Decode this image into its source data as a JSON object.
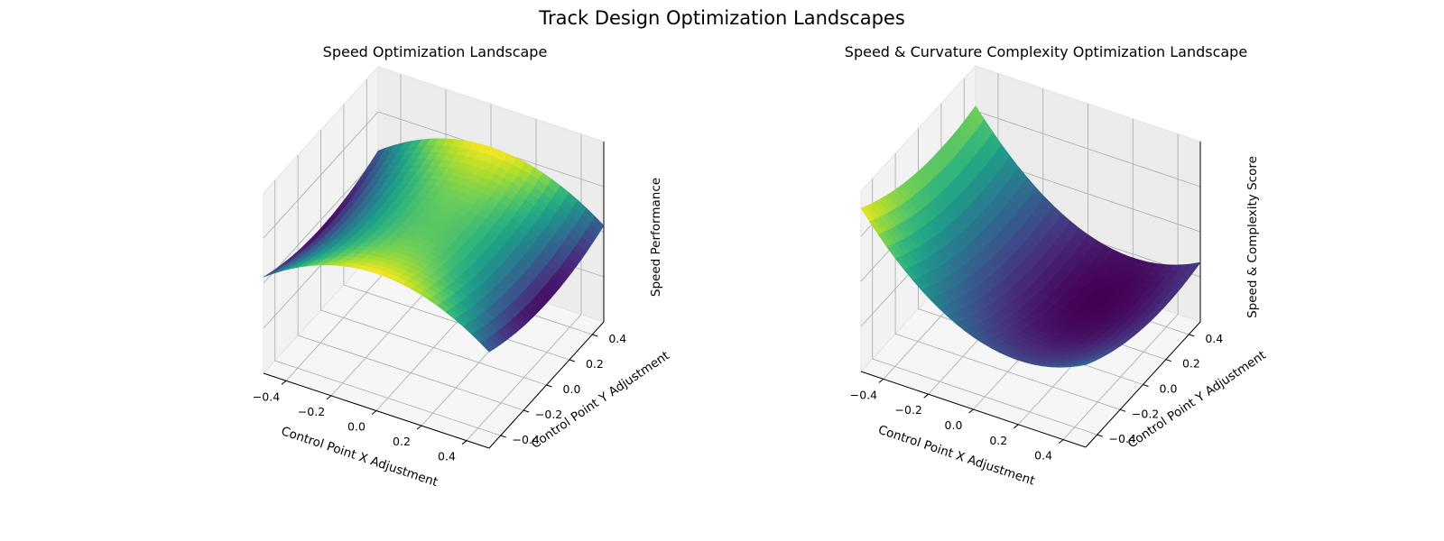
{
  "figure": {
    "title": "Track Design Optimization Landscapes"
  },
  "chart_data": [
    {
      "type": "surface3d",
      "title": "Speed Optimization Landscape",
      "xlabel": "Control Point X Adjustment",
      "ylabel": "Control Point Y Adjustment",
      "zlabel": "Speed Performance",
      "xlim": [
        -0.5,
        0.5
      ],
      "ylim": [
        -0.5,
        0.5
      ],
      "xticks": [
        -0.4,
        -0.2,
        0.0,
        0.2,
        0.4
      ],
      "yticks": [
        -0.4,
        -0.2,
        0.0,
        0.2,
        0.4
      ],
      "xtick_labels": [
        "−0.4",
        "−0.2",
        "0.0",
        "0.2",
        "0.4"
      ],
      "ytick_labels": [
        "−0.4",
        "−0.2",
        "0.0",
        "0.2",
        "0.4"
      ],
      "zticks_shown": false,
      "colormap": "viridis",
      "grid": true,
      "surface": {
        "form": "saddle",
        "z": "-x^2 + 0.35*y^2",
        "approx_range": [
          -0.25,
          0.1
        ]
      }
    },
    {
      "type": "surface3d",
      "title": "Speed & Curvature Complexity Optimization Landscape",
      "xlabel": "Control Point X Adjustment",
      "ylabel": "Control Point Y Adjustment",
      "zlabel": "Speed & Complexity Score",
      "xlim": [
        -0.5,
        0.5
      ],
      "ylim": [
        -0.5,
        0.5
      ],
      "xticks": [
        -0.4,
        -0.2,
        0.0,
        0.2,
        0.4
      ],
      "yticks": [
        -0.4,
        -0.2,
        0.0,
        0.2,
        0.4
      ],
      "xtick_labels": [
        "−0.4",
        "−0.2",
        "0.0",
        "0.2",
        "0.4"
      ],
      "ytick_labels": [
        "−0.4",
        "−0.2",
        "0.0",
        "0.2",
        "0.4"
      ],
      "zticks_shown": false,
      "colormap": "viridis",
      "grid": true,
      "surface": {
        "form": "valley",
        "z": "1.4*(x-0.2)^2 + 0.4*(y-0.2)^2",
        "approx_range": [
          0,
          0.9
        ]
      }
    }
  ]
}
